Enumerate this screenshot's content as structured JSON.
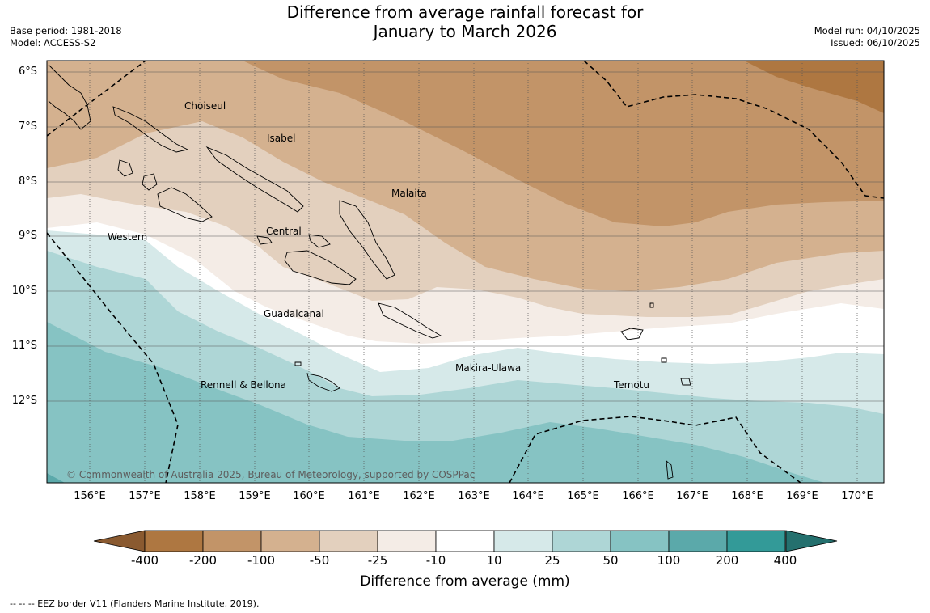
{
  "header": {
    "title_line1": "Difference from average rainfall forecast for",
    "title_line2": "January to March 2026",
    "base_period": "Base period: 1981-2018",
    "model": "Model: ACCESS-S2",
    "model_run": "Model run: 04/10/2025",
    "issued": "Issued: 06/10/2025"
  },
  "map": {
    "lat_labels": [
      "6°S",
      "7°S",
      "8°S",
      "9°S",
      "10°S",
      "11°S",
      "12°S"
    ],
    "lon_labels": [
      "156°E",
      "157°E",
      "158°E",
      "159°E",
      "160°E",
      "161°E",
      "162°E",
      "163°E",
      "164°E",
      "165°E",
      "166°E",
      "167°E",
      "168°E",
      "169°E",
      "170°E"
    ],
    "regions": {
      "choiseul": "Choiseul",
      "isabel": "Isabel",
      "malaita": "Malaita",
      "western": "Western",
      "central": "Central",
      "guadalcanal": "Guadalcanal",
      "makira": "Makira-Ulawa",
      "rennell": "Rennell & Bellona",
      "temotu": "Temotu"
    },
    "copyright": "© Commonwealth of Australia 2025, Bureau of Meteorology, supported by COSPPac"
  },
  "colorbar": {
    "title": "Difference from average (mm)",
    "labels": [
      "-400",
      "-200",
      "-100",
      "-50",
      "-25",
      "-10",
      "10",
      "25",
      "50",
      "100",
      "200",
      "400"
    ],
    "colors": [
      "#8a5a30",
      "#ae7741",
      "#c29468",
      "#d4b18f",
      "#e3d0be",
      "#f4ece6",
      "#ffffff",
      "#d6e9e9",
      "#aed6d6",
      "#86c3c3",
      "#5ba9aa",
      "#339a98",
      "#24706e"
    ]
  },
  "footer": {
    "eez_note": "--  --  -- EEZ border V11 (Flanders Marine Institute, 2019)."
  }
}
